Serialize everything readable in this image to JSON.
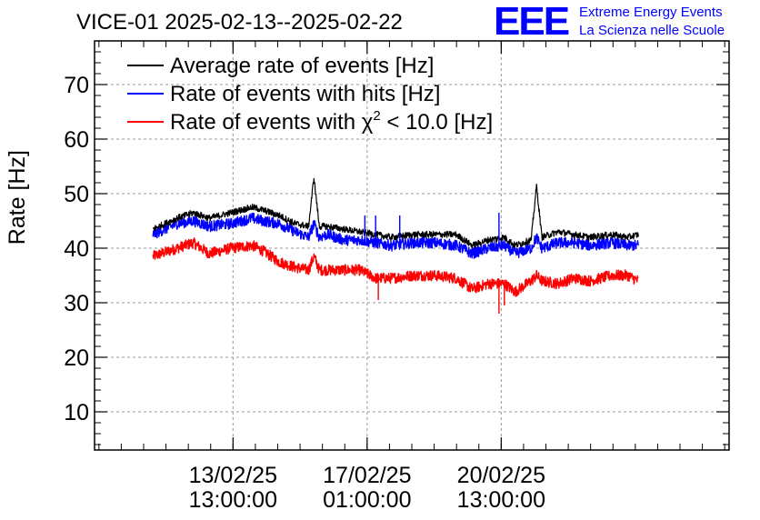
{
  "chart_data": {
    "type": "line",
    "title": "VICE-01 2025-02-13--2025-02-22",
    "ylabel": "Rate [Hz]",
    "xlabel": "",
    "ylim": [
      3,
      78
    ],
    "yticks": [
      10,
      20,
      30,
      40,
      50,
      60,
      70
    ],
    "x_axis": {
      "unit": "days since 13/02/25 00:00",
      "range": [
        -2.04,
        9.79
      ],
      "tick_labels": [
        {
          "x": 0.5417,
          "date": "13/02/25",
          "time": "13:00:00"
        },
        {
          "x": 3.0417,
          "date": "17/02/25",
          "time": "01:00:00"
        },
        {
          "x": 5.5417,
          "date": "20/02/25",
          "time": "13:00:00"
        }
      ]
    },
    "grid": true,
    "legend_position": "top-left",
    "series": [
      {
        "name": "average",
        "label_prefix": "Average rate of events [Hz]",
        "label_sup": "",
        "label_suffix": "",
        "color": "#000000",
        "points": [
          [
            -0.95,
            43.5
          ],
          [
            -0.5,
            45.5
          ],
          [
            -0.2,
            46.5
          ],
          [
            0.1,
            45.5
          ],
          [
            0.5,
            46.5
          ],
          [
            0.9,
            47.5
          ],
          [
            1.1,
            47.0
          ],
          [
            1.4,
            46.0
          ],
          [
            1.7,
            44.5
          ],
          [
            1.95,
            44.0
          ],
          [
            2.05,
            53.0
          ],
          [
            2.15,
            44.0
          ],
          [
            2.3,
            44.0
          ],
          [
            2.6,
            43.5
          ],
          [
            2.9,
            43.0
          ],
          [
            3.2,
            42.5
          ],
          [
            3.5,
            42.0
          ],
          [
            3.9,
            42.5
          ],
          [
            4.3,
            42.5
          ],
          [
            4.7,
            42.5
          ],
          [
            5.0,
            40.5
          ],
          [
            5.3,
            41.5
          ],
          [
            5.6,
            42.0
          ],
          [
            5.8,
            40.5
          ],
          [
            6.1,
            41.5
          ],
          [
            6.2,
            51.5
          ],
          [
            6.3,
            42.0
          ],
          [
            6.6,
            43.0
          ],
          [
            6.9,
            42.5
          ],
          [
            7.2,
            42.0
          ],
          [
            7.6,
            42.5
          ],
          [
            7.9,
            42.0
          ],
          [
            8.1,
            42.5
          ]
        ],
        "noise": 0.6
      },
      {
        "name": "hits",
        "label_prefix": "Rate of events with hits [Hz]",
        "label_sup": "",
        "label_suffix": "",
        "color": "#0000ff",
        "points": [
          [
            -0.95,
            42.5
          ],
          [
            -0.5,
            44.5
          ],
          [
            -0.2,
            45.0
          ],
          [
            0.1,
            44.0
          ],
          [
            0.5,
            44.5
          ],
          [
            0.9,
            45.5
          ],
          [
            1.1,
            45.0
          ],
          [
            1.4,
            44.5
          ],
          [
            1.7,
            43.0
          ],
          [
            1.95,
            42.0
          ],
          [
            2.05,
            44.5
          ],
          [
            2.15,
            42.0
          ],
          [
            2.3,
            42.5
          ],
          [
            2.6,
            41.5
          ],
          [
            2.9,
            41.5
          ],
          [
            3.2,
            41.0
          ],
          [
            3.5,
            40.5
          ],
          [
            3.9,
            41.0
          ],
          [
            4.3,
            41.0
          ],
          [
            4.7,
            40.5
          ],
          [
            5.0,
            39.0
          ],
          [
            5.3,
            40.0
          ],
          [
            5.6,
            40.5
          ],
          [
            5.8,
            39.0
          ],
          [
            6.1,
            40.0
          ],
          [
            6.2,
            42.0
          ],
          [
            6.3,
            40.0
          ],
          [
            6.6,
            41.0
          ],
          [
            6.9,
            41.0
          ],
          [
            7.2,
            40.5
          ],
          [
            7.6,
            41.0
          ],
          [
            7.9,
            40.5
          ],
          [
            8.1,
            40.5
          ]
        ],
        "noise": 1.0
      },
      {
        "name": "chi2",
        "label_prefix": "Rate of events with χ",
        "label_sup": "2",
        "label_suffix": " < 10.0 [Hz]",
        "color": "#ff0000",
        "points": [
          [
            -0.95,
            38.5
          ],
          [
            -0.5,
            40.0
          ],
          [
            -0.2,
            41.0
          ],
          [
            0.1,
            39.0
          ],
          [
            0.5,
            40.0
          ],
          [
            0.9,
            40.5
          ],
          [
            1.1,
            39.5
          ],
          [
            1.4,
            37.5
          ],
          [
            1.7,
            36.5
          ],
          [
            1.95,
            36.0
          ],
          [
            2.05,
            38.5
          ],
          [
            2.15,
            36.0
          ],
          [
            2.3,
            36.0
          ],
          [
            2.6,
            36.0
          ],
          [
            2.9,
            36.0
          ],
          [
            3.2,
            34.5
          ],
          [
            3.5,
            34.5
          ],
          [
            3.9,
            35.0
          ],
          [
            4.3,
            35.0
          ],
          [
            4.7,
            34.5
          ],
          [
            5.0,
            32.5
          ],
          [
            5.3,
            33.5
          ],
          [
            5.6,
            33.5
          ],
          [
            5.8,
            32.0
          ],
          [
            6.1,
            34.0
          ],
          [
            6.2,
            35.0
          ],
          [
            6.3,
            34.0
          ],
          [
            6.6,
            33.5
          ],
          [
            6.9,
            34.5
          ],
          [
            7.2,
            34.0
          ],
          [
            7.6,
            35.0
          ],
          [
            7.9,
            35.0
          ],
          [
            8.1,
            34.0
          ]
        ],
        "noise": 1.0
      }
    ],
    "spikes": [
      {
        "series": "hits",
        "x": 3.0,
        "y": 46.0
      },
      {
        "series": "hits",
        "x": 3.2,
        "y": 46.0
      },
      {
        "series": "hits",
        "x": 3.65,
        "y": 46.0
      },
      {
        "series": "hits",
        "x": 5.5,
        "y": 46.5
      },
      {
        "series": "chi2",
        "x": 5.5,
        "y": 28.0
      },
      {
        "series": "chi2",
        "x": 5.6,
        "y": 29.5
      },
      {
        "series": "chi2",
        "x": 3.25,
        "y": 30.5
      }
    ]
  },
  "logo": {
    "mark": "EEE",
    "line1": "Extreme Energy Events",
    "line2": "La Scienza nelle Scuole",
    "color": "#0000ff"
  }
}
